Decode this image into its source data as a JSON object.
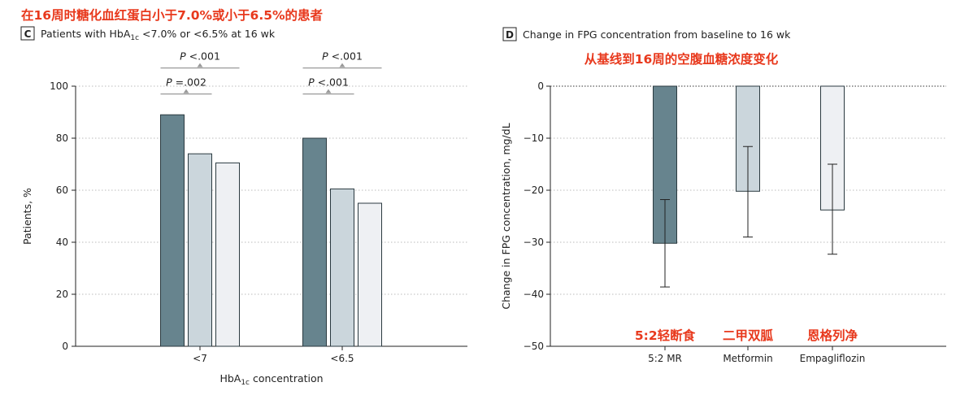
{
  "chart_data": [
    {
      "panel": "C",
      "type": "bar",
      "banner": "在16周时糖化血红蛋白小于7.0%或小于6.5%的患者",
      "title": "Patients with HbA1c <7.0% or <6.5% at 16 wk",
      "title_parts": {
        "pre": "Patients with HbA",
        "sub": "1c",
        "post": " <7.0% or <6.5% at 16 wk"
      },
      "xlabel": "HbA1c concentration",
      "xlabel_parts": {
        "pre": "HbA",
        "sub": "1c",
        "post": " concentration"
      },
      "ylabel": "Patients, %",
      "ylim": [
        0,
        100
      ],
      "yticks": [
        "0",
        "20",
        "40",
        "60",
        "80",
        "100"
      ],
      "categories": [
        "<7",
        "<6.5"
      ],
      "series": [
        {
          "color": "#67848e",
          "values": [
            89,
            80
          ]
        },
        {
          "color": "#cbd6dc",
          "values": [
            74,
            60.5
          ]
        },
        {
          "color": "#eef0f3",
          "values": [
            70.5,
            55
          ]
        }
      ],
      "annotations": [
        {
          "group": 0,
          "label_italic": "P",
          "label_rest": " =.002",
          "series_from": 0,
          "series_to": 1,
          "level": 97
        },
        {
          "group": 0,
          "label_italic": "P",
          "label_rest": " <.001",
          "series_from": 0,
          "series_to": 2,
          "level": 107
        },
        {
          "group": 1,
          "label_italic": "P",
          "label_rest": " <.001",
          "series_from": 0,
          "series_to": 1,
          "level": 97
        },
        {
          "group": 1,
          "label_italic": "P",
          "label_rest": " <.001",
          "series_from": 0,
          "series_to": 2,
          "level": 107
        }
      ]
    },
    {
      "panel": "D",
      "type": "bar",
      "banner": "从基线到16周的空腹血糖浓度变化",
      "title": "Change in FPG concentration from baseline to 16 wk",
      "xlabel": "",
      "ylabel": "Change in FPG concentration, mg/dL",
      "ylim": [
        -50,
        0
      ],
      "yticks": [
        "0",
        "−10",
        "−20",
        "−30",
        "−40",
        "−50"
      ],
      "categories": [
        "5:2 MR",
        "Metformin",
        "Empagliflozin"
      ],
      "category_cn": [
        "5:2轻断食",
        "二甲双胍",
        "恩格列净"
      ],
      "colors": [
        "#67848e",
        "#cbd6dc",
        "#eef0f3"
      ],
      "values": [
        -30.2,
        -20.2,
        -23.8
      ],
      "error_low": [
        -38.6,
        -29.0,
        -32.3
      ],
      "error_high": [
        -21.8,
        -11.6,
        -15.0
      ]
    }
  ]
}
